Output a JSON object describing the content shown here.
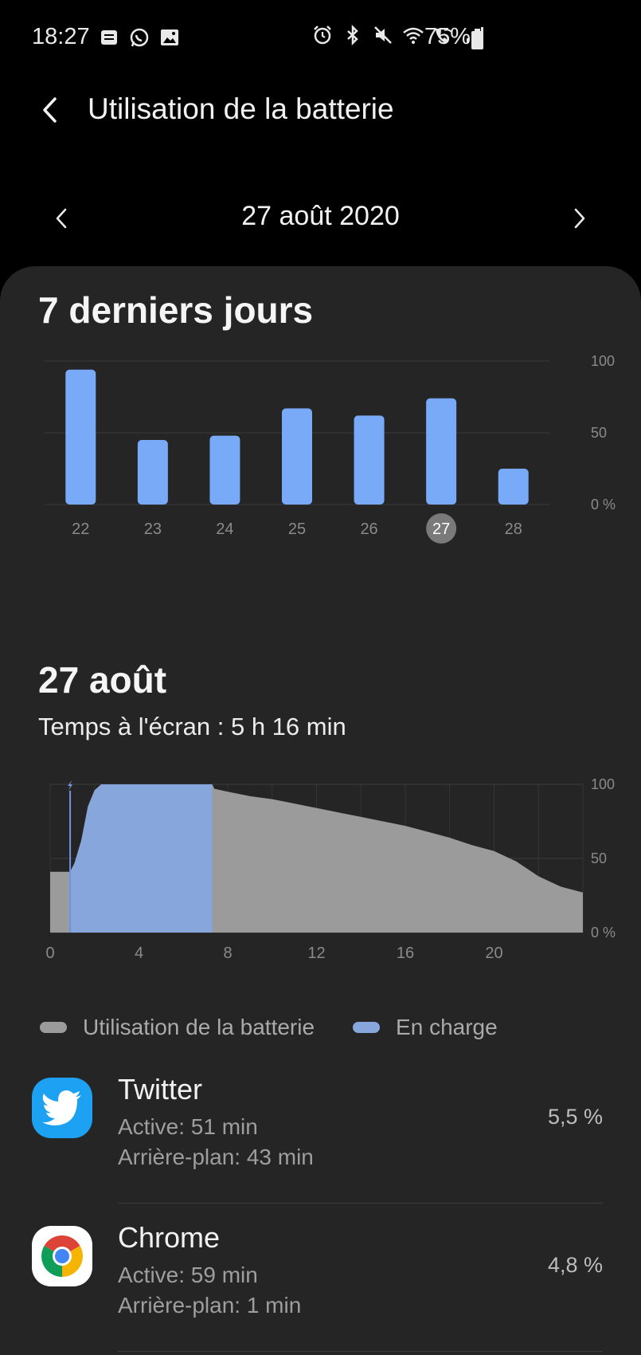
{
  "status_bar": {
    "time": "18:27",
    "battery_percent": "75%",
    "left_icons": [
      "notification-icon",
      "whatsapp-icon",
      "gallery-icon"
    ],
    "right_icons": [
      "alarm-icon",
      "bluetooth-icon",
      "mute-icon",
      "wifi-icon",
      "wifi-calling-icon",
      "signal-icon",
      "battery-icon"
    ]
  },
  "app_bar": {
    "title": "Utilisation de la batterie"
  },
  "date_nav": {
    "label": "27 août 2020"
  },
  "weekly": {
    "title": "7 derniers jours"
  },
  "daily": {
    "title": "27 août",
    "screen_time": "Temps à l'écran : 5 h 16 min"
  },
  "legend": {
    "usage_label": "Utilisation de la batterie",
    "charging_label": "En charge"
  },
  "apps": [
    {
      "name": "Twitter",
      "active": "Active: 51 min",
      "background": "Arrière-plan: 43 min",
      "percent": "5,5 %",
      "icon": "twitter-icon"
    },
    {
      "name": "Chrome",
      "active": "Active: 59 min",
      "background": "Arrière-plan: 1 min",
      "percent": "4,8 %",
      "icon": "chrome-icon"
    }
  ],
  "colors": {
    "bar": "#79aaf8",
    "charging": "#87a6db",
    "usage": "#9b9b9b",
    "selected_day": "#7a7a7a",
    "card": "#252525"
  },
  "chart_data": [
    {
      "type": "bar",
      "categories": [
        "22",
        "23",
        "24",
        "25",
        "26",
        "27",
        "28"
      ],
      "values": [
        94,
        45,
        48,
        67,
        62,
        74,
        25
      ],
      "selected_category": "27",
      "ylim": [
        0,
        100
      ],
      "yticks": [
        "100",
        "50",
        "0 %"
      ],
      "ytick_values": [
        100,
        50,
        0
      ],
      "grid": true
    },
    {
      "type": "area",
      "x": [
        0,
        0.9,
        1.1,
        1.4,
        1.7,
        2.0,
        2.3,
        2.5,
        7.3,
        7.4,
        8.0,
        9.0,
        10.0,
        11.0,
        12.0,
        13.0,
        14.0,
        15.0,
        16.0,
        17.0,
        18.0,
        19.0,
        20.0,
        21.0,
        22.0,
        23.0,
        24.0
      ],
      "values": [
        41,
        41,
        47,
        62,
        85,
        96,
        100,
        100,
        100,
        97,
        95,
        92,
        90,
        87,
        84,
        81,
        78,
        75,
        72,
        68,
        64,
        59,
        55,
        48,
        38,
        31,
        27
      ],
      "series": [
        {
          "name": "Utilisation de la batterie",
          "role": "usage"
        },
        {
          "name": "En charge",
          "role": "charging",
          "x_range": [
            0.9,
            7.3
          ]
        }
      ],
      "xticks": [
        "0",
        "4",
        "8",
        "12",
        "16",
        "20"
      ],
      "xtick_values": [
        0,
        4,
        8,
        12,
        16,
        20
      ],
      "xlim": [
        0,
        24
      ],
      "ylim": [
        0,
        100
      ],
      "yticks": [
        "100",
        "50",
        "0 %"
      ],
      "ytick_values": [
        100,
        50,
        0
      ],
      "grid": true
    }
  ]
}
